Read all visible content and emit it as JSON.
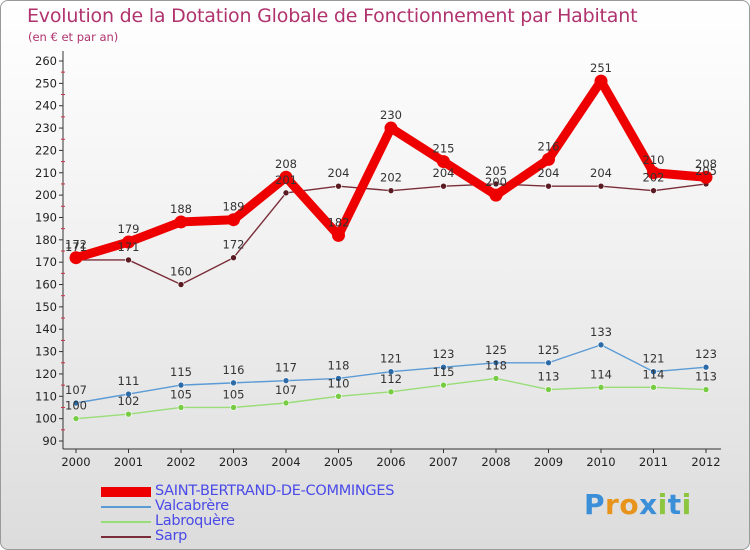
{
  "header": {
    "title": "Evolution de la Dotation Globale de Fonctionnement par Habitant",
    "subtitle": "(en € et par an)"
  },
  "logo": {
    "text": "Proxiti",
    "colors": [
      "#3a8fd8",
      "#e8941c",
      "#e8941c",
      "#3a8fd8",
      "#8cc63f",
      "#3a8fd8",
      "#8cc63f"
    ]
  },
  "colors": {
    "title": "#b0336e",
    "legend_text": "#4a4ae8",
    "axis": "#333333",
    "grid": "#d03040"
  },
  "chart_data": {
    "type": "line",
    "title": "Evolution de la Dotation Globale de Fonctionnement par Habitant",
    "subtitle": "(en € et par an)",
    "x": [
      "2000",
      "2001",
      "2002",
      "2003",
      "2004",
      "2005",
      "2006",
      "2007",
      "2008",
      "2009",
      "2010",
      "2011",
      "2012"
    ],
    "ylim": [
      90,
      260
    ],
    "yticks": [
      90,
      100,
      110,
      120,
      130,
      140,
      150,
      160,
      170,
      180,
      190,
      200,
      210,
      220,
      230,
      240,
      250,
      260
    ],
    "grid": "dashed minor ticks on y-axis",
    "legend_position": "bottom-left",
    "series": [
      {
        "name": "SAINT-BERTRAND-DE-COMMINGES",
        "color": "#ee0000",
        "width": "thick",
        "values": [
          172,
          179,
          188,
          189,
          208,
          182,
          230,
          215,
          200,
          216,
          251,
          210,
          208
        ],
        "labels": [
          "172",
          "179",
          "188",
          "189",
          "208",
          "182",
          "230",
          "215",
          "200",
          "216",
          "251",
          "210",
          "208"
        ]
      },
      {
        "name": "Valcabrère",
        "color": "#5b9bd5",
        "marker": "#2c6aa8",
        "values": [
          107,
          111,
          115,
          116,
          117,
          118,
          121,
          123,
          125,
          125,
          133,
          121,
          123
        ],
        "labels": [
          "107",
          "111",
          "115",
          "116",
          "117",
          "118",
          "121",
          "123",
          "125",
          "125",
          "133",
          "121",
          "123"
        ]
      },
      {
        "name": "Labroquère",
        "color": "#99dd77",
        "marker": "#77cc44",
        "values": [
          100,
          102,
          105,
          105,
          107,
          110,
          112,
          115,
          118,
          113,
          114,
          114,
          113
        ],
        "labels": [
          "100",
          "102",
          "105",
          "105",
          "107",
          "110",
          "112",
          "115",
          "118",
          "113",
          "114",
          "114",
          "113"
        ]
      },
      {
        "name": "Sarp",
        "color": "#7a2e3a",
        "marker": "#5a1a22",
        "values": [
          171,
          171,
          160,
          172,
          201,
          204,
          202,
          204,
          205,
          204,
          204,
          202,
          205
        ],
        "labels": [
          "171",
          "171",
          "160",
          "172",
          "201",
          "204",
          "202",
          "204",
          "205",
          "204",
          "204",
          "202",
          "205"
        ]
      }
    ]
  }
}
